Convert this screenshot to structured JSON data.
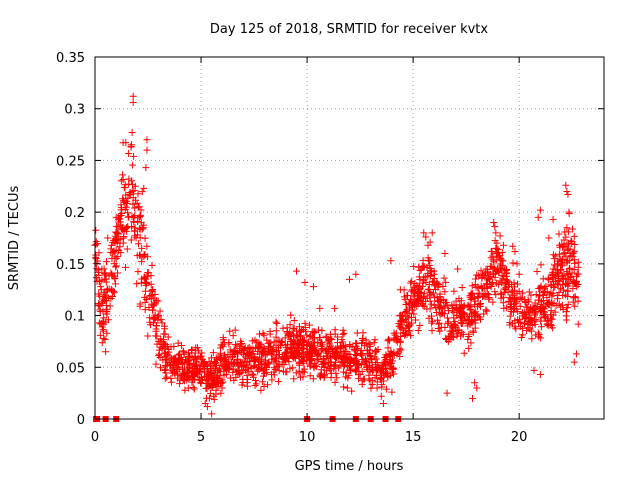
{
  "chart_data": {
    "type": "scatter",
    "title": "Day 125 of 2018, SRMTID for receiver kvtx",
    "xlabel": "GPS time / hours",
    "ylabel": "SRMTID / TECUs",
    "xlim": [
      0,
      24
    ],
    "ylim": [
      0,
      0.35
    ],
    "x_ticks": [
      0,
      5,
      10,
      15,
      20
    ],
    "x_tick_labels": [
      "0",
      "5",
      "10",
      "15",
      "20"
    ],
    "y_ticks": [
      0,
      0.05,
      0.1,
      0.15,
      0.2,
      0.25,
      0.3,
      0.35
    ],
    "y_tick_labels": [
      "0",
      "0.05",
      "0.1",
      "0.15",
      "0.2",
      "0.25",
      "0.3",
      "0.35"
    ],
    "grid": true,
    "marker": "+",
    "marker_color": "#ff0000",
    "zero_points_x": [
      0.05,
      0.1,
      0.5,
      1.0,
      10.0,
      11.2,
      12.3,
      13.0,
      13.7,
      14.3
    ],
    "series": [
      {
        "name": "SRMTID",
        "envelope": [
          [
            0.0,
            0.16,
            0.03
          ],
          [
            0.2,
            0.13,
            0.03
          ],
          [
            0.4,
            0.1,
            0.04
          ],
          [
            0.6,
            0.12,
            0.03
          ],
          [
            0.9,
            0.15,
            0.03
          ],
          [
            1.2,
            0.19,
            0.04
          ],
          [
            1.5,
            0.21,
            0.05
          ],
          [
            1.7,
            0.23,
            0.05
          ],
          [
            1.9,
            0.19,
            0.05
          ],
          [
            2.2,
            0.17,
            0.05
          ],
          [
            2.5,
            0.13,
            0.04
          ],
          [
            2.8,
            0.1,
            0.03
          ],
          [
            3.2,
            0.07,
            0.025
          ],
          [
            3.6,
            0.055,
            0.015
          ],
          [
            4.0,
            0.05,
            0.015
          ],
          [
            4.5,
            0.05,
            0.015
          ],
          [
            5.0,
            0.045,
            0.018
          ],
          [
            5.5,
            0.04,
            0.018
          ],
          [
            6.0,
            0.05,
            0.02
          ],
          [
            6.5,
            0.06,
            0.02
          ],
          [
            7.0,
            0.055,
            0.02
          ],
          [
            7.5,
            0.06,
            0.02
          ],
          [
            8.0,
            0.06,
            0.02
          ],
          [
            8.5,
            0.065,
            0.02
          ],
          [
            9.0,
            0.07,
            0.02
          ],
          [
            9.5,
            0.07,
            0.02
          ],
          [
            10.0,
            0.065,
            0.02
          ],
          [
            10.5,
            0.065,
            0.02
          ],
          [
            11.0,
            0.06,
            0.02
          ],
          [
            11.5,
            0.06,
            0.02
          ],
          [
            12.0,
            0.06,
            0.02
          ],
          [
            12.5,
            0.06,
            0.02
          ],
          [
            13.0,
            0.055,
            0.02
          ],
          [
            13.5,
            0.045,
            0.015
          ],
          [
            14.0,
            0.06,
            0.02
          ],
          [
            14.5,
            0.09,
            0.025
          ],
          [
            15.0,
            0.115,
            0.025
          ],
          [
            15.5,
            0.13,
            0.025
          ],
          [
            16.0,
            0.12,
            0.025
          ],
          [
            16.5,
            0.1,
            0.025
          ],
          [
            17.0,
            0.09,
            0.02
          ],
          [
            17.5,
            0.1,
            0.025
          ],
          [
            18.0,
            0.11,
            0.025
          ],
          [
            18.5,
            0.13,
            0.025
          ],
          [
            19.0,
            0.15,
            0.025
          ],
          [
            19.5,
            0.12,
            0.025
          ],
          [
            20.0,
            0.11,
            0.025
          ],
          [
            20.5,
            0.1,
            0.02
          ],
          [
            21.0,
            0.11,
            0.03
          ],
          [
            21.5,
            0.12,
            0.03
          ],
          [
            22.0,
            0.14,
            0.035
          ],
          [
            22.5,
            0.15,
            0.035
          ],
          [
            22.8,
            0.13,
            0.03
          ]
        ],
        "points": [
          [
            1.8,
            0.312
          ],
          [
            1.8,
            0.306
          ],
          [
            1.75,
            0.277
          ],
          [
            1.7,
            0.263
          ],
          [
            2.45,
            0.27
          ],
          [
            2.45,
            0.26
          ],
          [
            2.4,
            0.243
          ],
          [
            2.3,
            0.223
          ],
          [
            1.3,
            0.236
          ],
          [
            1.3,
            0.213
          ],
          [
            1.6,
            0.232
          ],
          [
            1.9,
            0.225
          ],
          [
            2.05,
            0.205
          ],
          [
            2.1,
            0.184
          ],
          [
            2.2,
            0.165
          ],
          [
            0.0,
            0.168
          ],
          [
            0.05,
            0.155
          ],
          [
            0.2,
            0.133
          ],
          [
            0.3,
            0.125
          ],
          [
            0.4,
            0.085
          ],
          [
            0.5,
            0.065
          ],
          [
            0.6,
            0.175
          ],
          [
            0.8,
            0.155
          ],
          [
            1.0,
            0.195
          ],
          [
            1.1,
            0.195
          ],
          [
            1.5,
            0.185
          ],
          [
            2.7,
            0.12
          ],
          [
            2.9,
            0.09
          ],
          [
            3.0,
            0.075
          ],
          [
            15.5,
            0.18
          ],
          [
            15.6,
            0.176
          ],
          [
            15.7,
            0.168
          ],
          [
            15.8,
            0.171
          ],
          [
            15.9,
            0.18
          ],
          [
            16.0,
            0.14
          ],
          [
            16.5,
            0.16
          ],
          [
            17.1,
            0.145
          ],
          [
            18.8,
            0.19
          ],
          [
            18.85,
            0.186
          ],
          [
            18.9,
            0.18
          ],
          [
            18.95,
            0.17
          ],
          [
            19.0,
            0.164
          ],
          [
            19.1,
            0.177
          ],
          [
            19.7,
            0.167
          ],
          [
            19.8,
            0.162
          ],
          [
            19.9,
            0.15
          ],
          [
            20.0,
            0.14
          ],
          [
            22.2,
            0.226
          ],
          [
            22.25,
            0.22
          ],
          [
            22.3,
            0.217
          ],
          [
            22.35,
            0.2
          ],
          [
            21.6,
            0.193
          ],
          [
            21.4,
            0.175
          ],
          [
            22.6,
            0.154
          ],
          [
            22.7,
            0.138
          ],
          [
            21.0,
            0.202
          ],
          [
            20.9,
            0.195
          ],
          [
            21.9,
            0.168
          ],
          [
            13.95,
            0.153
          ],
          [
            14.4,
            0.125
          ],
          [
            9.5,
            0.143
          ],
          [
            9.9,
            0.132
          ],
          [
            10.3,
            0.128
          ],
          [
            12.0,
            0.135
          ],
          [
            12.3,
            0.14
          ],
          [
            10.6,
            0.107
          ],
          [
            11.3,
            0.107
          ],
          [
            13.5,
            0.022
          ],
          [
            13.6,
            0.015
          ],
          [
            13.3,
            0.03
          ],
          [
            14.0,
            0.026
          ],
          [
            5.5,
            0.005
          ],
          [
            5.3,
            0.012
          ],
          [
            5.2,
            0.015
          ],
          [
            5.6,
            0.022
          ],
          [
            4.7,
            0.038
          ],
          [
            4.4,
            0.03
          ],
          [
            11.9,
            0.03
          ],
          [
            12.1,
            0.027
          ],
          [
            16.6,
            0.025
          ],
          [
            17.8,
            0.02
          ],
          [
            18.0,
            0.03
          ],
          [
            17.9,
            0.035
          ],
          [
            20.7,
            0.047
          ],
          [
            21.0,
            0.043
          ],
          [
            22.6,
            0.055
          ],
          [
            22.7,
            0.063
          ]
        ]
      }
    ]
  }
}
